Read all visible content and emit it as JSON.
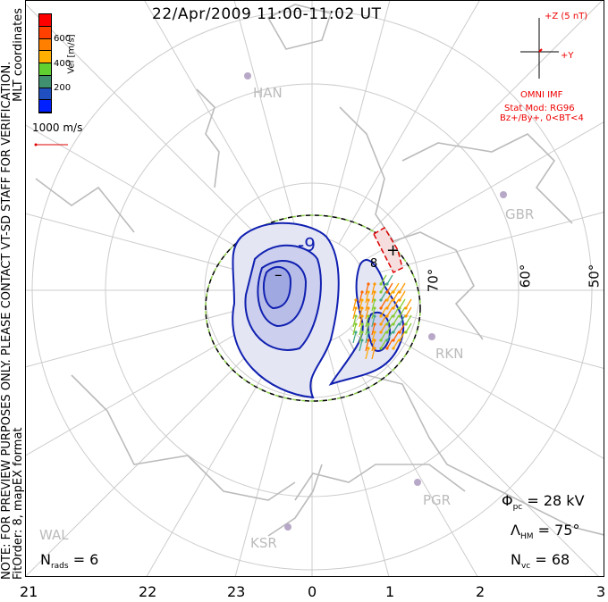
{
  "title": "22/Apr/2009 11:00-11:02 UT",
  "side_note": "NOTE: FOR PREVIEW PURPOSES ONLY. PLEASE CONTACT VT-SD STAFF FOR VERIFICATION.",
  "coords": "MLT coordinates",
  "fit": "FitOrder: 8, mapEX format",
  "colorbar": {
    "label": "Vel [m/s]",
    "ticks": [
      "600",
      "400",
      "200"
    ],
    "colors": [
      "#ff0000",
      "#ff4000",
      "#ff8000",
      "#ffb000",
      "#60d030",
      "#409070",
      "#2050c0",
      "#0020ff"
    ]
  },
  "scale_label": "1000 m/s",
  "imf": {
    "z": "+Z (5 nT)",
    "y": "+Y",
    "source": "OMNI IMF",
    "model": "Stat Mod: RG96",
    "cond": "Bz+/By+, 0<BT<4"
  },
  "mlt_labels": [
    "21",
    "22",
    "23",
    "0",
    "1",
    "2",
    "3"
  ],
  "lat_labels": [
    "70°",
    "60°",
    "50°"
  ],
  "stations": [
    "HAN",
    "GBR",
    "RKN",
    "PGR",
    "KSR",
    "WAL"
  ],
  "contour_labels": [
    "-9",
    "8",
    "–",
    "+"
  ],
  "stats": {
    "phi": "Φ",
    "phi_sub": "pc",
    "phi_val": "= 28 kV",
    "lam": "Λ",
    "lam_sub": "HM",
    "lam_val": "= 75°",
    "nvc": "N",
    "nvc_sub": "vc",
    "nvc_val": "= 68",
    "nrads": "N",
    "nrads_sub": "rads",
    "nrads_val": "= 6"
  }
}
